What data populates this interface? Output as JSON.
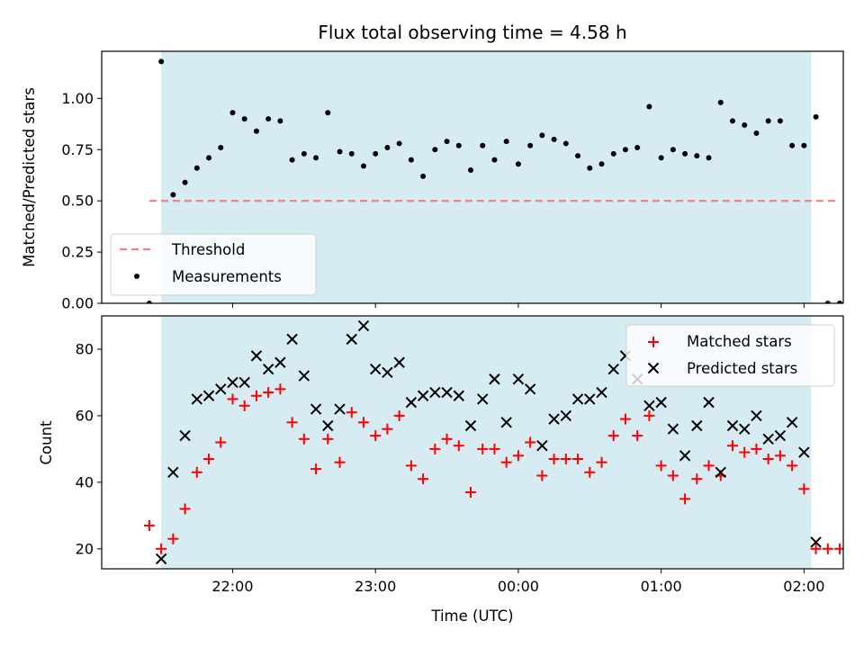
{
  "chart_data": [
    {
      "type": "scatter",
      "title": "Flux total observing time = 4.58 h",
      "ylabel": "Matched/Predicted stars",
      "ylim": [
        0,
        1.23
      ],
      "yticks": [
        "0.00",
        "0.25",
        "0.50",
        "0.75",
        "1.00"
      ],
      "shaded_span": [
        "21:30",
        "02:03"
      ],
      "threshold": {
        "name": "Threshold",
        "value": 0.5,
        "x_range": [
          "21:25",
          "02:15"
        ],
        "color": "#f08080"
      },
      "series": [
        {
          "name": "Measurements",
          "color": "#000000",
          "x": [
            "21:25",
            "21:30",
            "21:35",
            "21:40",
            "21:45",
            "21:50",
            "21:55",
            "22:00",
            "22:05",
            "22:10",
            "22:15",
            "22:20",
            "22:25",
            "22:30",
            "22:35",
            "22:40",
            "22:45",
            "22:50",
            "22:55",
            "23:00",
            "23:05",
            "23:10",
            "23:15",
            "23:20",
            "23:25",
            "23:30",
            "23:35",
            "23:40",
            "23:45",
            "23:50",
            "23:55",
            "00:00",
            "00:05",
            "00:10",
            "00:15",
            "00:20",
            "00:25",
            "00:30",
            "00:35",
            "00:40",
            "00:45",
            "00:50",
            "00:55",
            "01:00",
            "01:05",
            "01:10",
            "01:15",
            "01:20",
            "01:25",
            "01:30",
            "01:35",
            "01:40",
            "01:45",
            "01:50",
            "01:55",
            "02:00",
            "02:05",
            "02:10",
            "02:15"
          ],
          "y": [
            0.0,
            1.18,
            0.53,
            0.59,
            0.66,
            0.71,
            0.76,
            0.93,
            0.9,
            0.84,
            0.9,
            0.89,
            0.7,
            0.73,
            0.71,
            0.93,
            0.74,
            0.73,
            0.67,
            0.73,
            0.76,
            0.78,
            0.7,
            0.62,
            0.75,
            0.79,
            0.77,
            0.65,
            0.77,
            0.7,
            0.79,
            0.68,
            0.77,
            0.82,
            0.8,
            0.78,
            0.72,
            0.66,
            0.68,
            0.73,
            0.75,
            0.76,
            0.96,
            0.71,
            0.75,
            0.73,
            0.72,
            0.71,
            0.98,
            0.89,
            0.87,
            0.83,
            0.89,
            0.89,
            0.77,
            0.77,
            0.91,
            0.0,
            0.0
          ]
        }
      ],
      "legend": {
        "position": "lower-left",
        "entries": [
          "Threshold",
          "Measurements"
        ]
      }
    },
    {
      "type": "scatter",
      "xlabel": "Time (UTC)",
      "ylabel": "Count",
      "ylim": [
        14,
        90
      ],
      "yticks": [
        "20",
        "40",
        "60",
        "80"
      ],
      "xticks": [
        "22:00",
        "23:00",
        "00:00",
        "01:00",
        "02:00"
      ],
      "shaded_span": [
        "21:30",
        "02:03"
      ],
      "series": [
        {
          "name": "Matched stars",
          "marker": "plus",
          "color": "#ff0000",
          "x": [
            "21:25",
            "21:30",
            "21:35",
            "21:40",
            "21:45",
            "21:50",
            "21:55",
            "22:00",
            "22:05",
            "22:10",
            "22:15",
            "22:20",
            "22:25",
            "22:30",
            "22:35",
            "22:40",
            "22:45",
            "22:50",
            "22:55",
            "23:00",
            "23:05",
            "23:10",
            "23:15",
            "23:20",
            "23:25",
            "23:30",
            "23:35",
            "23:40",
            "23:45",
            "23:50",
            "23:55",
            "00:00",
            "00:05",
            "00:10",
            "00:15",
            "00:20",
            "00:25",
            "00:30",
            "00:35",
            "00:40",
            "00:45",
            "00:50",
            "00:55",
            "01:00",
            "01:05",
            "01:10",
            "01:15",
            "01:20",
            "01:25",
            "01:30",
            "01:35",
            "01:40",
            "01:45",
            "01:50",
            "01:55",
            "02:00",
            "02:05",
            "02:10",
            "02:15"
          ],
          "y": [
            27,
            20,
            23,
            32,
            43,
            47,
            52,
            65,
            63,
            66,
            67,
            68,
            58,
            53,
            44,
            53,
            46,
            61,
            58,
            54,
            56,
            60,
            45,
            41,
            50,
            53,
            51,
            37,
            50,
            50,
            46,
            48,
            52,
            42,
            47,
            47,
            47,
            43,
            46,
            54,
            59,
            54,
            60,
            45,
            42,
            35,
            41,
            45,
            42,
            51,
            49,
            50,
            47,
            48,
            45,
            38,
            20,
            20,
            20
          ]
        },
        {
          "name": "Predicted stars",
          "marker": "x",
          "color": "#000000",
          "x": [
            "21:30",
            "21:35",
            "21:40",
            "21:45",
            "21:50",
            "21:55",
            "22:00",
            "22:05",
            "22:10",
            "22:15",
            "22:20",
            "22:25",
            "22:30",
            "22:35",
            "22:40",
            "22:45",
            "22:50",
            "22:55",
            "23:00",
            "23:05",
            "23:10",
            "23:15",
            "23:20",
            "23:25",
            "23:30",
            "23:35",
            "23:40",
            "23:45",
            "23:50",
            "23:55",
            "00:00",
            "00:05",
            "00:10",
            "00:15",
            "00:20",
            "00:25",
            "00:30",
            "00:35",
            "00:40",
            "00:45",
            "00:50",
            "00:55",
            "01:00",
            "01:05",
            "01:10",
            "01:15",
            "01:20",
            "01:25",
            "01:30",
            "01:35",
            "01:40",
            "01:45",
            "01:50",
            "01:55",
            "02:00",
            "02:05"
          ],
          "y": [
            17,
            43,
            54,
            65,
            66,
            68,
            70,
            70,
            78,
            74,
            76,
            83,
            72,
            62,
            57,
            62,
            83,
            87,
            74,
            73,
            76,
            64,
            66,
            67,
            67,
            66,
            57,
            65,
            71,
            58,
            71,
            68,
            51,
            59,
            60,
            65,
            65,
            67,
            74,
            78,
            71,
            63,
            64,
            56,
            48,
            57,
            64,
            43,
            57,
            56,
            60,
            53,
            54,
            58,
            49,
            22
          ]
        }
      ],
      "legend": {
        "position": "upper-right",
        "entries": [
          "Matched stars",
          "Predicted stars"
        ]
      }
    }
  ]
}
